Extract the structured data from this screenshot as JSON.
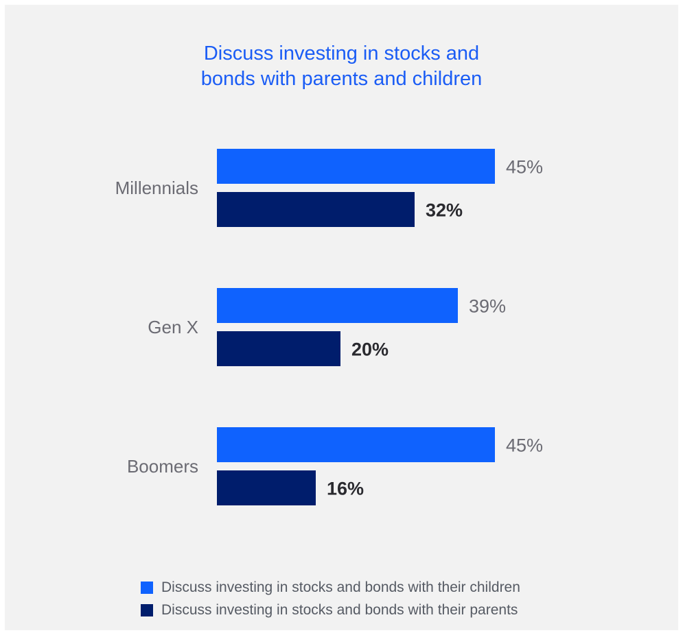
{
  "chart_data": {
    "type": "bar",
    "orientation": "horizontal",
    "title_lines": [
      "Discuss investing in stocks and",
      "bonds with parents and children"
    ],
    "categories": [
      "Millennials",
      "Gen X",
      "Boomers"
    ],
    "series": [
      {
        "name": "Discuss investing in stocks and bonds with their children",
        "values": [
          45,
          39,
          45
        ],
        "labels": [
          "45%",
          "39%",
          "45%"
        ],
        "color": "#0f62fe"
      },
      {
        "name": "Discuss investing in stocks and bonds with their parents",
        "values": [
          32,
          20,
          16
        ],
        "labels": [
          "32%",
          "20%",
          "16%"
        ],
        "color": "#001d6c"
      }
    ],
    "value_format": "percent",
    "xlim": [
      0,
      45
    ],
    "grid": false,
    "legend_position": "bottom"
  },
  "colors": {
    "background": "#f2f2f2",
    "title": "#1a5cf5",
    "label_light": "#6b6b73",
    "label_bold": "#2a2a2f"
  }
}
